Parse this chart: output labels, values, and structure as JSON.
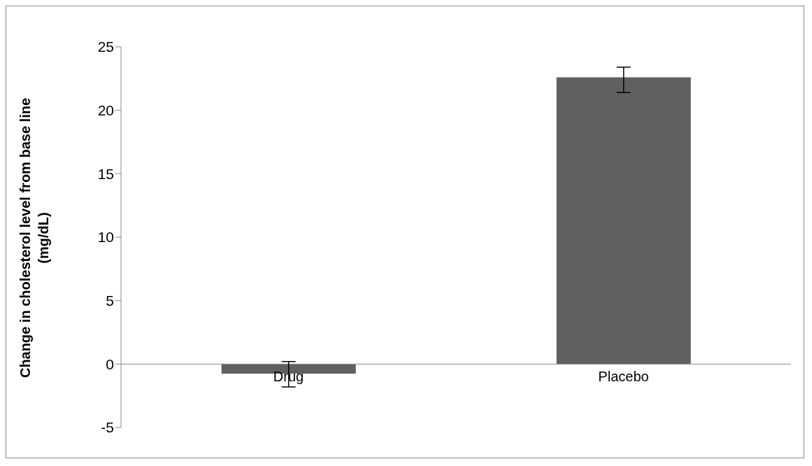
{
  "chart_data": {
    "type": "bar",
    "ylabel": "Change in cholesterol level from base line (mg/dL)",
    "categories": [
      "Drug",
      "Placebo"
    ],
    "values": [
      -0.75,
      22.6
    ],
    "errors": [
      [
        -1.8,
        0.2
      ],
      [
        21.4,
        23.4
      ]
    ],
    "color": "#606060",
    "ylim": [
      -5,
      25
    ],
    "yticks": [
      -5,
      0,
      5,
      10,
      15,
      20,
      25
    ],
    "grid": false,
    "legend": false
  }
}
